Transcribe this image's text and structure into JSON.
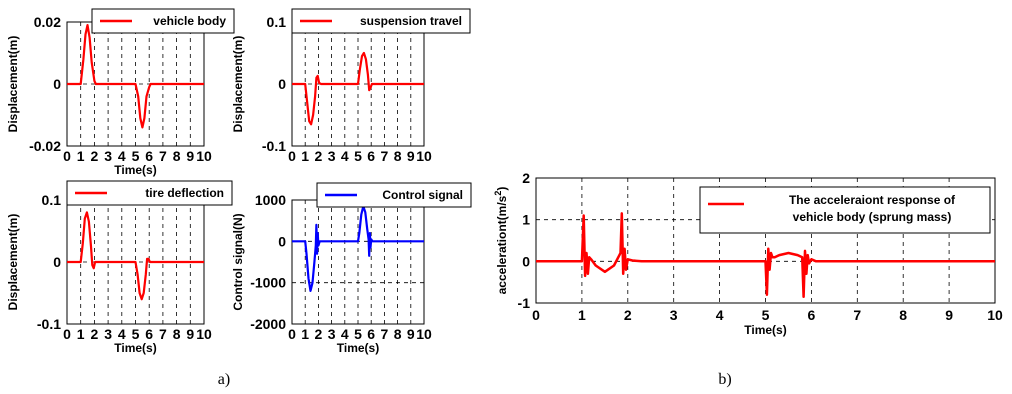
{
  "captions": {
    "a": "a)",
    "b": "b)"
  },
  "chart_data": [
    {
      "type": "line",
      "panel": "a-top-left",
      "ylabel": "Displacement(m)",
      "xlabel": "Time(s)",
      "xlim": [
        0,
        10
      ],
      "ylim": [
        -0.02,
        0.02
      ],
      "yticks": [
        -0.02,
        0,
        0.02
      ],
      "ytick_labels": [
        "-0.02",
        "0",
        "0.02"
      ],
      "xticks": [
        0,
        1,
        2,
        3,
        4,
        5,
        6,
        7,
        8,
        9,
        10
      ],
      "xtick_labels": [
        "0",
        "1",
        "2",
        "3",
        "4",
        "5",
        "6",
        "7",
        "8",
        "9",
        "10"
      ],
      "grid": true,
      "legend": "top-right",
      "series": [
        {
          "name": "vehicle body",
          "color": "#ff0000",
          "x": [
            0,
            1.0,
            1.2,
            1.35,
            1.5,
            1.65,
            1.8,
            2.0,
            2.1,
            5.0,
            5.2,
            5.35,
            5.5,
            5.65,
            5.8,
            6.0,
            6.1,
            10
          ],
          "y": [
            0,
            0,
            0.008,
            0.016,
            0.019,
            0.015,
            0.007,
            0.001,
            0,
            0,
            -0.004,
            -0.011,
            -0.014,
            -0.011,
            -0.004,
            -0.001,
            0,
            0
          ]
        }
      ]
    },
    {
      "type": "line",
      "panel": "a-top-right",
      "ylabel": "Displacement(m)",
      "xlabel": "",
      "xlim": [
        0,
        10
      ],
      "ylim": [
        -0.1,
        0.1
      ],
      "yticks": [
        -0.1,
        0,
        0.1
      ],
      "ytick_labels": [
        "-0.1",
        "0",
        "0.1"
      ],
      "xticks": [
        0,
        1,
        2,
        3,
        4,
        5,
        6,
        7,
        8,
        9,
        10
      ],
      "xtick_labels": [
        "0",
        "1",
        "2",
        "3",
        "4",
        "5",
        "6",
        "7",
        "8",
        "9",
        "10"
      ],
      "grid": true,
      "legend": "top-right",
      "series": [
        {
          "name": "suspension travel",
          "color": "#ff0000",
          "x": [
            0,
            1.0,
            1.15,
            1.3,
            1.45,
            1.6,
            1.75,
            1.85,
            1.95,
            2.05,
            2.2,
            5.0,
            5.15,
            5.3,
            5.45,
            5.6,
            5.75,
            5.85,
            5.95,
            6.05,
            6.2,
            10
          ],
          "y": [
            0,
            0,
            -0.03,
            -0.06,
            -0.065,
            -0.05,
            -0.02,
            0.01,
            0.013,
            0.002,
            0,
            0,
            0.025,
            0.045,
            0.05,
            0.04,
            0.015,
            -0.01,
            -0.006,
            0,
            0,
            0
          ]
        }
      ]
    },
    {
      "type": "line",
      "panel": "a-bottom-left",
      "ylabel": "Displacement(m)",
      "xlabel": "Time(s)",
      "xlim": [
        0,
        10
      ],
      "ylim": [
        -0.1,
        0.1
      ],
      "yticks": [
        -0.1,
        0,
        0.1
      ],
      "ytick_labels": [
        "-0.1",
        "0",
        "0.1"
      ],
      "xticks": [
        0,
        1,
        2,
        3,
        4,
        5,
        6,
        7,
        8,
        9,
        10
      ],
      "xtick_labels": [
        "0",
        "1",
        "2",
        "3",
        "4",
        "5",
        "6",
        "7",
        "8",
        "9",
        "10"
      ],
      "grid": true,
      "legend": "top-right",
      "series": [
        {
          "name": "tire deflection",
          "color": "#ff0000",
          "x": [
            0,
            1.0,
            1.15,
            1.3,
            1.45,
            1.6,
            1.75,
            1.85,
            1.95,
            2.05,
            2.2,
            5.0,
            5.15,
            5.3,
            5.45,
            5.6,
            5.75,
            5.85,
            5.95,
            6.05,
            6.2,
            10
          ],
          "y": [
            0,
            0,
            0.03,
            0.07,
            0.08,
            0.065,
            0.025,
            -0.005,
            -0.01,
            0,
            0,
            0,
            -0.02,
            -0.05,
            -0.06,
            -0.05,
            -0.02,
            0.005,
            0.005,
            0,
            0,
            0
          ]
        }
      ]
    },
    {
      "type": "line",
      "panel": "a-bottom-right",
      "ylabel": "Control signal(N)",
      "xlabel": "Time(s)",
      "xlim": [
        0,
        10
      ],
      "ylim": [
        -2000,
        1000
      ],
      "yticks": [
        -2000,
        -1000,
        0,
        1000
      ],
      "ytick_labels": [
        "-2000",
        "-1000",
        "0",
        "1000"
      ],
      "xticks": [
        0,
        1,
        2,
        3,
        4,
        5,
        6,
        7,
        8,
        9,
        10
      ],
      "xtick_labels": [
        "0",
        "1",
        "2",
        "3",
        "4",
        "5",
        "6",
        "7",
        "8",
        "9",
        "10"
      ],
      "grid": true,
      "legend": "top-right",
      "series": [
        {
          "name": "Control signal",
          "color": "#0000ff",
          "x": [
            0,
            1.0,
            1.1,
            1.25,
            1.4,
            1.55,
            1.7,
            1.8,
            1.85,
            1.9,
            1.95,
            2.0,
            2.1,
            2.3,
            5.0,
            5.1,
            5.25,
            5.4,
            5.55,
            5.7,
            5.8,
            5.85,
            5.9,
            5.95,
            6.0,
            6.1,
            6.3,
            10
          ],
          "y": [
            0,
            0,
            -300,
            -900,
            -1200,
            -1000,
            -500,
            -100,
            400,
            -300,
            200,
            -100,
            0,
            0,
            0,
            200,
            650,
            850,
            700,
            300,
            50,
            -350,
            200,
            -150,
            50,
            0,
            0,
            0
          ]
        }
      ]
    },
    {
      "type": "line",
      "panel": "b",
      "ylabel": "accelerationt(m/s^2)",
      "ylabel_main": "accelerationt(m/s",
      "ylabel_sup": "2",
      "ylabel_tail": ")",
      "xlabel": "Time(s)",
      "xlim": [
        0,
        10
      ],
      "ylim": [
        -1,
        2
      ],
      "yticks": [
        -1,
        0,
        1,
        2
      ],
      "ytick_labels": [
        "-1",
        "0",
        "1",
        "2"
      ],
      "xticks": [
        0,
        1,
        2,
        3,
        4,
        5,
        6,
        7,
        8,
        9,
        10
      ],
      "xtick_labels": [
        "0",
        "1",
        "2",
        "3",
        "4",
        "5",
        "6",
        "7",
        "8",
        "9",
        "10"
      ],
      "grid": true,
      "legend": "top-right",
      "legend_lines": [
        "The acceleraiont response of",
        "vehicle body (sprung mass)"
      ],
      "series": [
        {
          "name": "The acceleraiont response of vehicle body (sprung mass)",
          "color": "#ff0000",
          "x": [
            0,
            1.0,
            1.04,
            1.07,
            1.1,
            1.13,
            1.16,
            1.2,
            1.3,
            1.5,
            1.7,
            1.84,
            1.87,
            1.9,
            1.93,
            1.96,
            2.0,
            2.1,
            2.3,
            5.0,
            5.03,
            5.06,
            5.09,
            5.12,
            5.15,
            5.2,
            5.3,
            5.5,
            5.7,
            5.8,
            5.83,
            5.86,
            5.89,
            5.92,
            5.95,
            6.0,
            6.1,
            10
          ],
          "y": [
            0,
            0,
            1.1,
            -0.35,
            0.2,
            -0.3,
            0.1,
            0.05,
            -0.1,
            -0.25,
            -0.1,
            0.2,
            1.15,
            -0.3,
            0.3,
            -0.2,
            0.05,
            0.02,
            0,
            0,
            -0.8,
            0.3,
            -0.2,
            0.2,
            0.1,
            0.1,
            0.15,
            0.2,
            0.15,
            0.1,
            -0.85,
            0.25,
            -0.3,
            0.15,
            -0.05,
            0.05,
            0,
            0
          ]
        }
      ]
    }
  ]
}
